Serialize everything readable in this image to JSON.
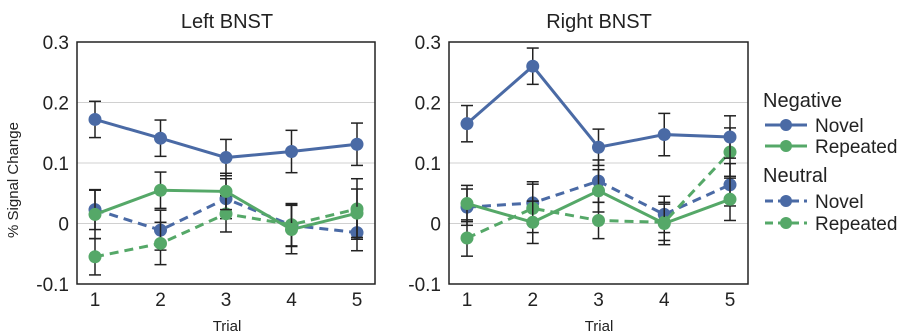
{
  "chart_data": [
    {
      "type": "line",
      "title": "Left BNST",
      "xlabel": "Trial",
      "ylabel": "% Signal Change",
      "x": [
        1,
        2,
        3,
        4,
        5
      ],
      "ylim": [
        -0.1,
        0.3
      ],
      "yticks": [
        "-0.1",
        "0",
        "0.1",
        "0.2",
        "0.3"
      ],
      "xticks": [
        "1",
        "2",
        "3",
        "4",
        "5"
      ],
      "grid": "horizontal",
      "series": [
        {
          "name": "Novel",
          "group": "Negative",
          "color": "#4a6aa5",
          "dashed": false,
          "values": [
            0.172,
            0.141,
            0.109,
            0.119,
            0.131
          ],
          "errors": [
            0.03,
            0.03,
            0.03,
            0.035,
            0.035
          ]
        },
        {
          "name": "Repeated",
          "group": "Negative",
          "color": "#55a868",
          "dashed": false,
          "values": [
            0.015,
            0.055,
            0.053,
            -0.01,
            0.017
          ],
          "errors": [
            0.04,
            0.03,
            0.03,
            0.04,
            0.04
          ]
        },
        {
          "name": "Novel",
          "group": "Neutral",
          "color": "#4a6aa5",
          "dashed": true,
          "values": [
            0.023,
            -0.011,
            0.041,
            -0.003,
            -0.015
          ],
          "errors": [
            0.033,
            0.033,
            0.033,
            0.035,
            0.03
          ]
        },
        {
          "name": "Repeated",
          "group": "Neutral",
          "color": "#55a868",
          "dashed": true,
          "values": [
            -0.055,
            -0.033,
            0.016,
            -0.002,
            0.024
          ],
          "errors": [
            0.03,
            0.035,
            0.03,
            0.035,
            0.05
          ]
        }
      ]
    },
    {
      "type": "line",
      "title": "Right BNST",
      "xlabel": "Trial",
      "ylabel": "",
      "x": [
        1,
        2,
        3,
        4,
        5
      ],
      "ylim": [
        -0.1,
        0.3
      ],
      "yticks": [
        "-0.1",
        "0",
        "0.1",
        "0.2",
        "0.3"
      ],
      "xticks": [
        "1",
        "2",
        "3",
        "4",
        "5"
      ],
      "grid": "horizontal",
      "series": [
        {
          "name": "Novel",
          "group": "Negative",
          "color": "#4a6aa5",
          "dashed": false,
          "values": [
            0.165,
            0.26,
            0.126,
            0.147,
            0.143
          ],
          "errors": [
            0.03,
            0.03,
            0.03,
            0.035,
            0.035
          ]
        },
        {
          "name": "Repeated",
          "group": "Negative",
          "color": "#55a868",
          "dashed": false,
          "values": [
            0.033,
            0.002,
            0.054,
            0.0,
            0.04
          ],
          "errors": [
            0.03,
            0.035,
            0.035,
            0.035,
            0.035
          ]
        },
        {
          "name": "Novel",
          "group": "Neutral",
          "color": "#4a6aa5",
          "dashed": true,
          "values": [
            0.027,
            0.034,
            0.07,
            0.015,
            0.064
          ],
          "errors": [
            0.03,
            0.035,
            0.035,
            0.03,
            0.035
          ]
        },
        {
          "name": "Repeated",
          "group": "Neutral",
          "color": "#55a868",
          "dashed": true,
          "values": [
            -0.024,
            0.025,
            0.005,
            0.002,
            0.118
          ],
          "errors": [
            0.03,
            0.04,
            0.03,
            0.03,
            0.04
          ]
        }
      ]
    }
  ],
  "legend": {
    "placement": "right",
    "groups": [
      {
        "title": "Negative",
        "items": [
          {
            "label": "Novel",
            "color": "#4a6aa5",
            "dashed": false
          },
          {
            "label": "Repeated",
            "color": "#55a868",
            "dashed": false
          }
        ]
      },
      {
        "title": "Neutral",
        "items": [
          {
            "label": "Novel",
            "color": "#4a6aa5",
            "dashed": true
          },
          {
            "label": "Repeated",
            "color": "#55a868",
            "dashed": true
          }
        ]
      }
    ]
  }
}
